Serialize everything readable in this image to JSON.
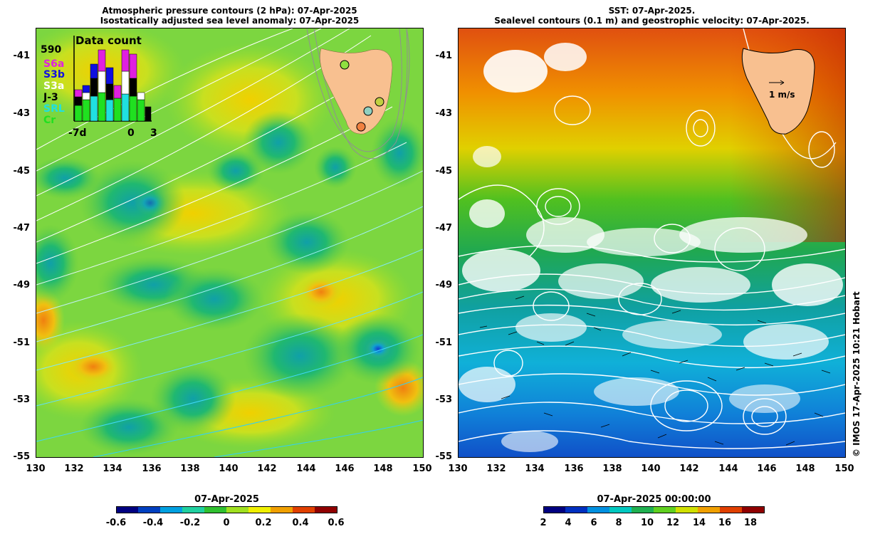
{
  "left_panel": {
    "title_line1": "Atmospheric pressure contours (2 hPa): 07-Apr-2025",
    "title_line2": "Isostatically adjusted sea level anomaly: 07-Apr-2025",
    "y_ticks": [
      "-41",
      "-43",
      "-45",
      "-47",
      "-49",
      "-51",
      "-53",
      "-55"
    ],
    "x_ticks": [
      "130",
      "132",
      "134",
      "136",
      "138",
      "140",
      "142",
      "144",
      "146",
      "148",
      "150"
    ],
    "inset": {
      "title": "Data count",
      "max_count": "590",
      "missions": [
        {
          "label": "S6a",
          "color": "#e020e0"
        },
        {
          "label": "S3b",
          "color": "#1010e0"
        },
        {
          "label": "S3a",
          "color": "#ffffff"
        },
        {
          "label": "J-3",
          "color": "#000000"
        },
        {
          "label": "SRL",
          "color": "#20e0e0"
        },
        {
          "label": "Cr",
          "color": "#20e020"
        }
      ],
      "axis_start": "-7d",
      "axis_zero": "0",
      "axis_end": "3"
    },
    "colorbar": {
      "title": "07-Apr-2025",
      "labels": [
        "-0.6",
        "-0.4",
        "-0.2",
        "0",
        "0.2",
        "0.4",
        "0.6"
      ],
      "colors": [
        "#000080",
        "#0040c0",
        "#00a0e0",
        "#20d0a0",
        "#30c030",
        "#a0e020",
        "#f0f000",
        "#f0a000",
        "#e04000",
        "#900000"
      ]
    }
  },
  "right_panel": {
    "title_line1": "SST: 07-Apr-2025.",
    "title_line2": "Sealevel contours (0.1 m) and geostrophic velocity: 07-Apr-2025.",
    "y_ticks": [
      "-41",
      "-43",
      "-45",
      "-47",
      "-49",
      "-51",
      "-53",
      "-55"
    ],
    "x_ticks": [
      "130",
      "132",
      "134",
      "136",
      "138",
      "140",
      "142",
      "144",
      "146",
      "148",
      "150"
    ],
    "velocity_legend": "1 m/s",
    "colorbar": {
      "title": "07-Apr-2025 00:00:00",
      "labels": [
        "2",
        "4",
        "6",
        "8",
        "10",
        "12",
        "14",
        "16",
        "18"
      ],
      "colors": [
        "#000080",
        "#0030c0",
        "#0090e0",
        "#00c8c0",
        "#20b050",
        "#60d020",
        "#d0e000",
        "#f0a000",
        "#e04000",
        "#900000"
      ]
    }
  },
  "credit": "© IMOS 17-Apr-2025 10:21 Hobart",
  "colors": {
    "land": "#f8c090",
    "sla_base": "#70d040",
    "sst_warm": "#e06010",
    "sst_cold": "#1060d0"
  }
}
